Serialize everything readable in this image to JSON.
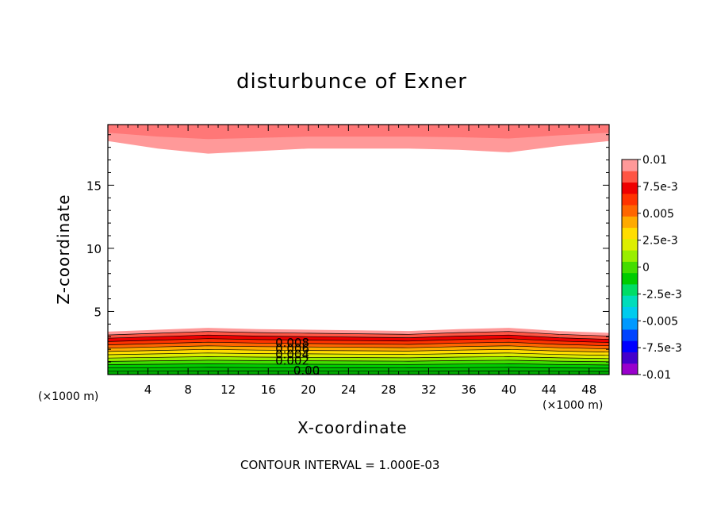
{
  "chart_data": {
    "type": "contour",
    "title": "disturbunce of Exner",
    "xlabel": "X-coordinate",
    "ylabel": "Z-coordinate",
    "x_unit": "(×1000 m)",
    "x_unit_left": "(×1000 m)",
    "xlim": [
      0,
      50
    ],
    "ylim": [
      0,
      19.8
    ],
    "x_ticks": [
      4,
      8,
      12,
      16,
      20,
      24,
      28,
      32,
      36,
      40,
      44,
      48
    ],
    "y_ticks": [
      5,
      10,
      15
    ],
    "colorbar": {
      "range": [
        -0.01,
        0.01
      ],
      "tick_labels": [
        "0.01",
        "7.5e-3",
        "0.005",
        "2.5e-3",
        "0",
        "-2.5e-3",
        "-0.005",
        "-7.5e-3",
        "-0.01"
      ],
      "colors": [
        "#9900cc",
        "#4400cc",
        "#0000ff",
        "#0044ff",
        "#0099ff",
        "#00ccee",
        "#00ddbb",
        "#00dd66",
        "#00cc00",
        "#44dd00",
        "#99ee00",
        "#ddee00",
        "#ffdd00",
        "#ffaa00",
        "#ff6600",
        "#ff3300",
        "#ee0000",
        "#ff5544",
        "#ff9999"
      ]
    },
    "contour_labels": [
      "0.008",
      "0.006",
      "0.004",
      "0.002",
      "0.00"
    ],
    "contour_interval_text": "CONTOUR INTERVAL = 1.000E-03",
    "bottom_layer": {
      "levels": [
        0.0085,
        0.0078,
        0.0071,
        0.0064,
        0.0057,
        0.005,
        0.0043,
        0.0036,
        0.0029,
        0.0022,
        0.0015,
        0.0008,
        0.0002
      ],
      "colors": [
        "#ff9999",
        "#ff5544",
        "#ee0000",
        "#ff3300",
        "#ff6600",
        "#ffaa00",
        "#ffdd00",
        "#ddee00",
        "#99ee00",
        "#44dd00",
        "#00cc00",
        "#00bb00",
        "#00aa00"
      ],
      "profile_x": [
        0,
        5,
        10,
        15,
        20,
        25,
        30,
        35,
        40,
        45,
        50
      ],
      "profile_z_top": [
        3.4,
        3.55,
        3.7,
        3.6,
        3.55,
        3.5,
        3.45,
        3.6,
        3.7,
        3.45,
        3.3
      ]
    },
    "top_layer": {
      "levels": [
        0.0085,
        0.0075
      ],
      "colors": [
        "#ff9999",
        "#ff7777"
      ],
      "lower_edge_x": [
        0,
        5,
        10,
        15,
        20,
        25,
        30,
        35,
        40,
        45,
        50
      ],
      "lower_edge_z": [
        18.5,
        17.9,
        17.5,
        17.7,
        17.9,
        17.9,
        17.9,
        17.8,
        17.6,
        18.1,
        18.5
      ]
    }
  }
}
